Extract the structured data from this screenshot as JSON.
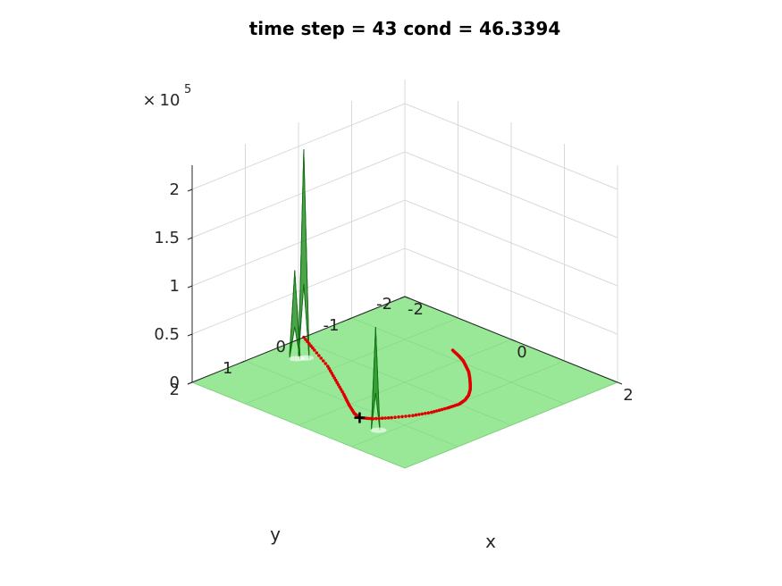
{
  "chart_data": {
    "type": "surface3d",
    "title": "time step = 43 cond = 46.3394",
    "xlabel": "x",
    "ylabel": "y",
    "zlabel": "",
    "z_multiplier_base": "10",
    "z_multiplier_exponent": "5",
    "z_multiplier_prefix": "×",
    "xlim": [
      -2,
      2
    ],
    "ylim": [
      -2,
      2
    ],
    "zlim": [
      0,
      225000
    ],
    "x_ticks": [
      {
        "value": -2,
        "label": "-2"
      },
      {
        "value": 0,
        "label": "0"
      },
      {
        "value": 2,
        "label": "2"
      }
    ],
    "y_ticks": [
      {
        "value": -2,
        "label": "-2"
      },
      {
        "value": -1,
        "label": "-1"
      },
      {
        "value": 0,
        "label": "0"
      },
      {
        "value": 1,
        "label": "1"
      },
      {
        "value": 2,
        "label": "2"
      }
    ],
    "z_ticks": [
      {
        "value": 0,
        "label": "0"
      },
      {
        "value": 50000,
        "label": "0.5"
      },
      {
        "value": 100000,
        "label": "1"
      },
      {
        "value": 150000,
        "label": "1.5"
      },
      {
        "value": 200000,
        "label": "2"
      }
    ],
    "grid": true,
    "surface_color": "#98e898",
    "peak_color": "#1e8c1e",
    "trajectory_color": "#e00000",
    "marker_color": "#000000",
    "peaks": [
      {
        "x": -1.55,
        "y": 0.35,
        "height": 215000,
        "width": 0.1
      },
      {
        "x": -1.62,
        "y": 0.45,
        "height": 90000,
        "width": 0.1
      },
      {
        "x": 0.8,
        "y": 1.35,
        "height": 105000,
        "width": 0.08
      }
    ],
    "trajectory": [
      {
        "x": -2.0,
        "y": -0.1
      },
      {
        "x": -1.6,
        "y": 0.1
      },
      {
        "x": -1.1,
        "y": 0.35
      },
      {
        "x": -0.7,
        "y": 0.6
      },
      {
        "x": -0.3,
        "y": 0.85
      },
      {
        "x": 0.0,
        "y": 1.05
      },
      {
        "x": 0.25,
        "y": 1.2
      },
      {
        "x": 0.4,
        "y": 1.25
      },
      {
        "x": 0.55,
        "y": 1.15
      },
      {
        "x": 0.7,
        "y": 0.95
      },
      {
        "x": 0.85,
        "y": 0.7
      },
      {
        "x": 0.95,
        "y": 0.45
      },
      {
        "x": 1.0,
        "y": 0.2
      },
      {
        "x": 1.02,
        "y": 0.0
      },
      {
        "x": 0.98,
        "y": -0.15
      },
      {
        "x": 0.9,
        "y": -0.3
      },
      {
        "x": 0.78,
        "y": -0.45
      },
      {
        "x": 0.65,
        "y": -0.58
      },
      {
        "x": 0.5,
        "y": -0.72
      },
      {
        "x": 0.35,
        "y": -0.85
      },
      {
        "x": 0.2,
        "y": -0.95
      },
      {
        "x": 0.05,
        "y": -1.05
      },
      {
        "x": -0.1,
        "y": -1.12
      },
      {
        "x": -0.3,
        "y": -1.2
      }
    ],
    "marker": {
      "x": 0.4,
      "y": 1.25
    }
  }
}
